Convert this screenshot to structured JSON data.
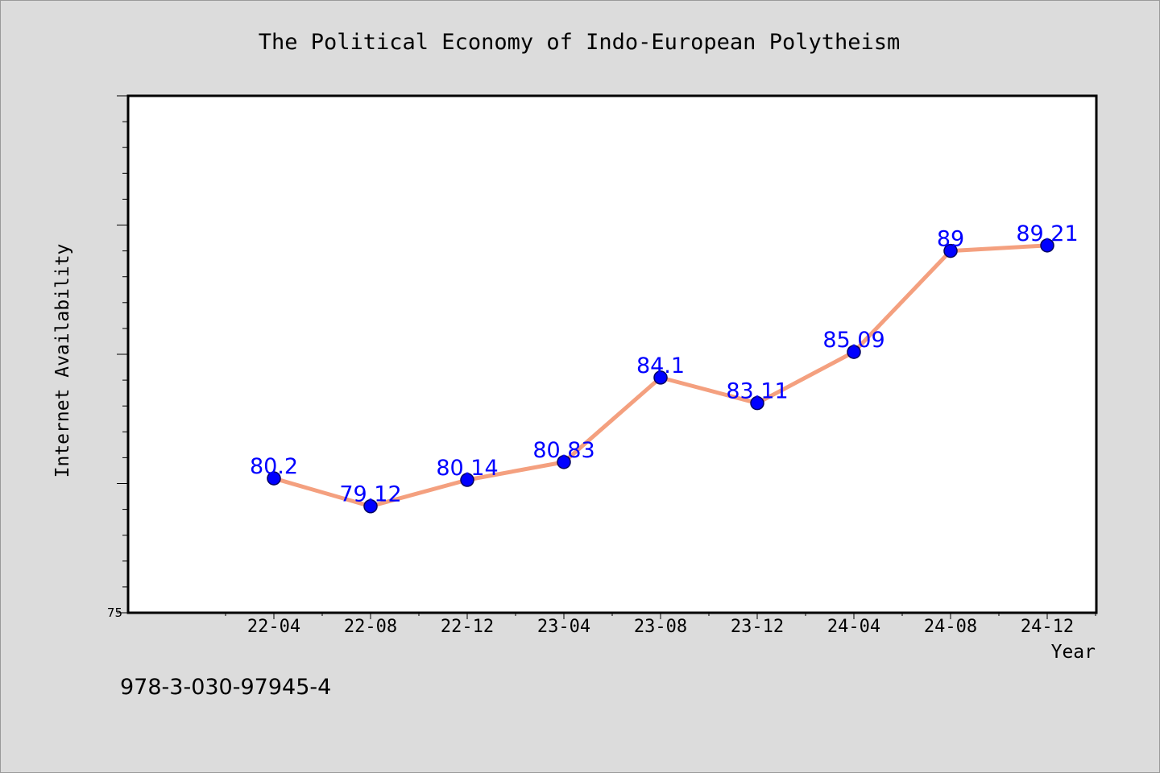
{
  "chart_data": {
    "type": "line",
    "title": "The Political Economy of Indo-European Polytheism",
    "xlabel": "Year",
    "ylabel": "Internet Availability",
    "categories": [
      "22-04",
      "22-08",
      "22-12",
      "23-04",
      "23-08",
      "23-12",
      "24-04",
      "24-08",
      "24-12"
    ],
    "series": [
      {
        "values": [
          80.2,
          79.12,
          80.14,
          80.83,
          84.1,
          83.11,
          85.09,
          89,
          89.21
        ],
        "labels": [
          "80.2",
          "79.12",
          "80.14",
          "80.83",
          "84.1",
          "83.11",
          "85.09",
          "89",
          "89.21"
        ]
      }
    ],
    "ylim": [
      75,
      95
    ],
    "y_tick_labels": [
      "75"
    ],
    "grid": false,
    "colors": {
      "line": "#f4a07f",
      "marker": "#0000ff",
      "data_label": "#0000ff",
      "background": "#dcdcdc",
      "plot_background": "#ffffff"
    }
  },
  "footer": {
    "isbn": "978-3-030-97945-4"
  }
}
